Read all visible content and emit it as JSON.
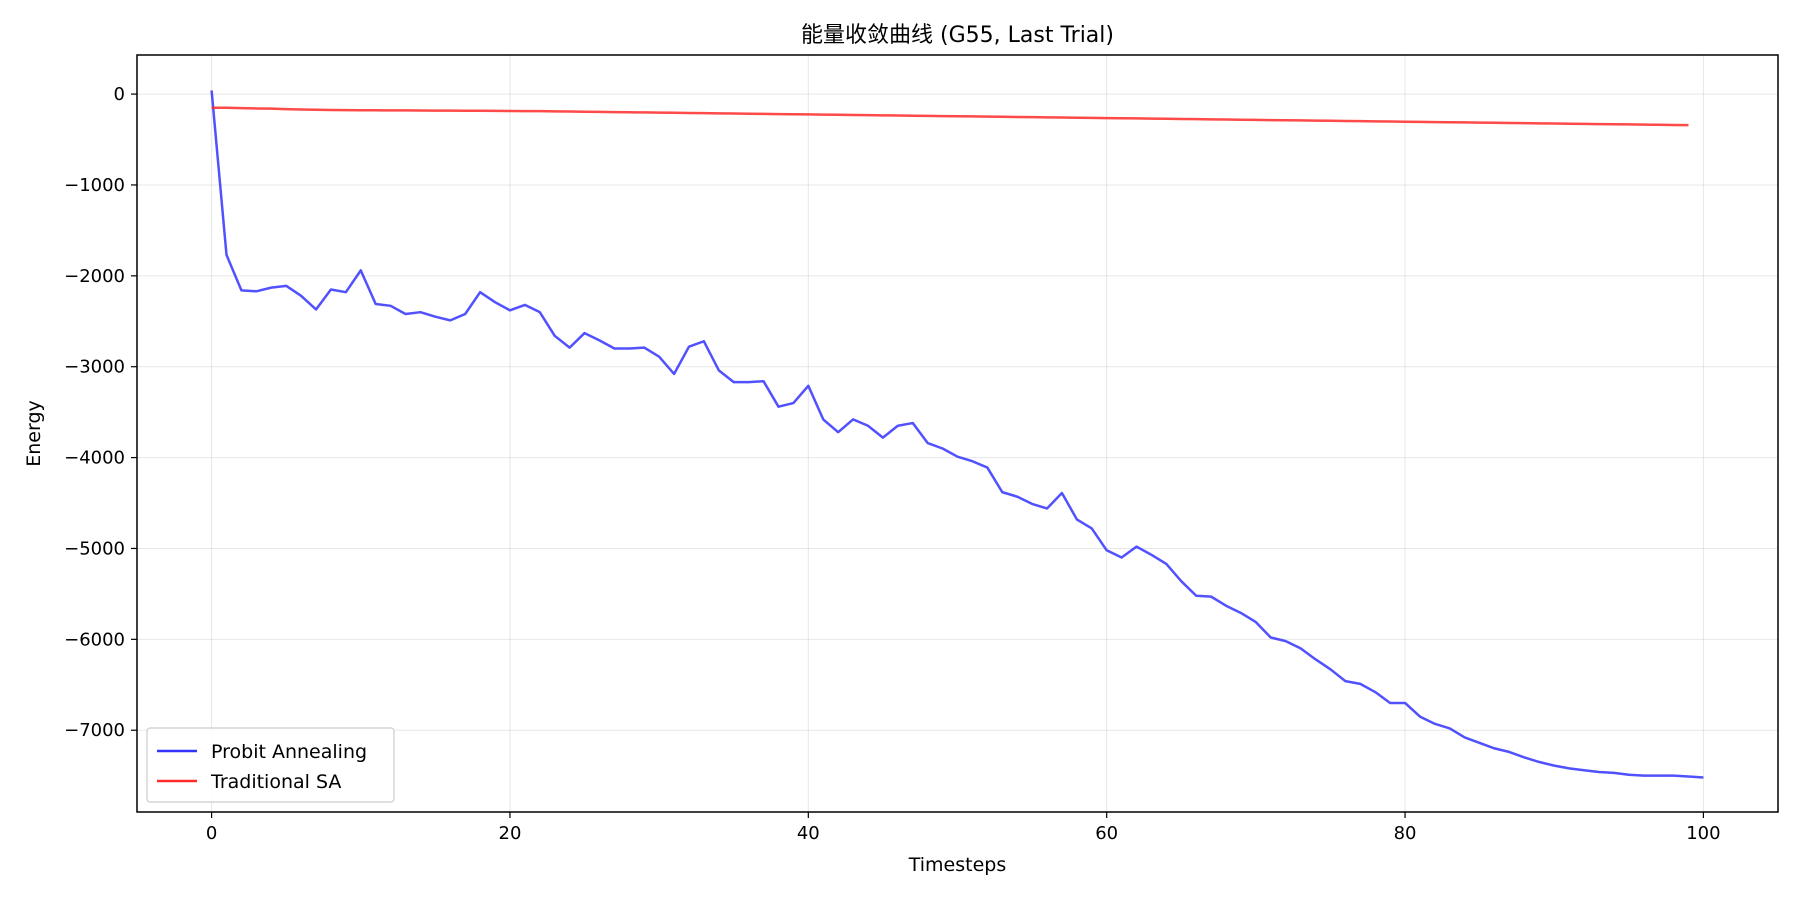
{
  "chart_data": {
    "type": "line",
    "title": "能量收敛曲线 (G55, Last Trial)",
    "xlabel": "Timesteps",
    "ylabel": "Energy",
    "xlim": [
      -5,
      105
    ],
    "ylim": [
      -7900,
      430
    ],
    "x_ticks": [
      0,
      20,
      40,
      60,
      80,
      100
    ],
    "y_ticks": [
      0,
      -1000,
      -2000,
      -3000,
      -4000,
      -5000,
      -6000,
      -7000
    ],
    "grid": true,
    "legend_position": "lower-left",
    "series": [
      {
        "name": "Probit Annealing",
        "color": "#3333ff",
        "x_start": 0,
        "values": [
          40,
          -1770,
          -2160,
          -2170,
          -2130,
          -2110,
          -2220,
          -2370,
          -2150,
          -2180,
          -1940,
          -2310,
          -2330,
          -2420,
          -2400,
          -2450,
          -2490,
          -2420,
          -2180,
          -2290,
          -2380,
          -2320,
          -2400,
          -2660,
          -2790,
          -2630,
          -2710,
          -2800,
          -2800,
          -2790,
          -2890,
          -3080,
          -2780,
          -2720,
          -3040,
          -3170,
          -3170,
          -3160,
          -3440,
          -3400,
          -3210,
          -3580,
          -3720,
          -3580,
          -3650,
          -3780,
          -3650,
          -3620,
          -3840,
          -3900,
          -3990,
          -4040,
          -4110,
          -4380,
          -4430,
          -4510,
          -4560,
          -4390,
          -4680,
          -4780,
          -5020,
          -5100,
          -4980,
          -5070,
          -5170,
          -5360,
          -5520,
          -5530,
          -5630,
          -5710,
          -5810,
          -5980,
          -6020,
          -6100,
          -6220,
          -6330,
          -6460,
          -6490,
          -6580,
          -6700,
          -6700,
          -6850,
          -6930,
          -6980,
          -7080,
          -7140,
          -7200,
          -7240,
          -7300,
          -7350,
          -7390,
          -7420,
          -7440,
          -7460,
          -7470,
          -7490,
          -7500,
          -7500,
          -7500,
          -7510,
          -7520
        ]
      },
      {
        "name": "Traditional SA",
        "color": "#ff2a2a",
        "x_start": 0,
        "values": [
          -150,
          -150,
          -155,
          -158,
          -160,
          -165,
          -170,
          -172,
          -175,
          -176,
          -178,
          -178,
          -180,
          -180,
          -181,
          -182,
          -182,
          -183,
          -183,
          -185,
          -186,
          -187,
          -188,
          -190,
          -192,
          -194,
          -196,
          -198,
          -200,
          -202,
          -204,
          -206,
          -208,
          -210,
          -212,
          -214,
          -216,
          -218,
          -220,
          -222,
          -224,
          -226,
          -228,
          -230,
          -232,
          -234,
          -236,
          -238,
          -240,
          -242,
          -244,
          -246,
          -248,
          -250,
          -252,
          -254,
          -256,
          -258,
          -260,
          -262,
          -264,
          -266,
          -268,
          -270,
          -272,
          -274,
          -276,
          -278,
          -280,
          -282,
          -284,
          -286,
          -288,
          -290,
          -292,
          -294,
          -296,
          -298,
          -300,
          -302,
          -304,
          -306,
          -308,
          -310,
          -312,
          -314,
          -316,
          -318,
          -320,
          -322,
          -324,
          -326,
          -328,
          -330,
          -332,
          -334,
          -336,
          -338,
          -340,
          -342
        ]
      }
    ]
  }
}
